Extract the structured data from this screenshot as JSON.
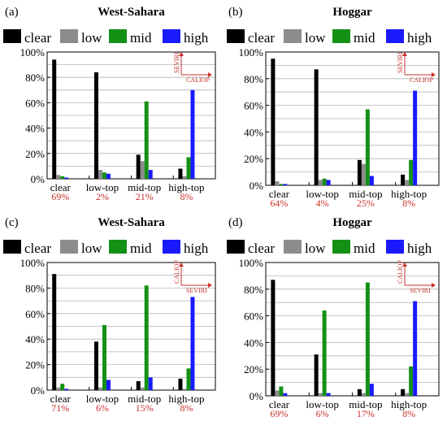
{
  "colors": {
    "clear": "#000000",
    "low": "#8c8c8c",
    "mid": "#149114",
    "high": "#1a1aff",
    "percent_text": "#c8322b",
    "grid": "#b5b5b5"
  },
  "legend": [
    "clear",
    "low",
    "mid",
    "high"
  ],
  "chart_data": [
    {
      "panel": "(a)",
      "title": "West-Sahara",
      "type": "bar",
      "categories": [
        "clear",
        "low-top",
        "mid-top",
        "high-top"
      ],
      "category_percents": [
        "69%",
        "2%",
        "21%",
        "8%"
      ],
      "yticks": [
        "0%",
        "20%",
        "40%",
        "60%",
        "80%",
        "100%"
      ],
      "ylim": [
        0,
        100
      ],
      "inset": {
        "x_label": "CALIOP",
        "y_label": "SEVIRI"
      },
      "series": [
        {
          "name": "clear",
          "values": [
            94,
            84,
            19,
            8
          ]
        },
        {
          "name": "low",
          "values": [
            3,
            7,
            14,
            2
          ]
        },
        {
          "name": "mid",
          "values": [
            2,
            5,
            61,
            17
          ]
        },
        {
          "name": "high",
          "values": [
            1,
            4,
            7,
            70
          ]
        }
      ]
    },
    {
      "panel": "(b)",
      "title": "Hoggar",
      "type": "bar",
      "categories": [
        "clear",
        "low-top",
        "mid-top",
        "high-top"
      ],
      "category_percents": [
        "64%",
        "4%",
        "25%",
        "8%"
      ],
      "yticks": [
        "0%",
        "20%",
        "40%",
        "60%",
        "80%",
        "100%"
      ],
      "ylim": [
        0,
        100
      ],
      "inset": {
        "x_label": "CALIOP",
        "y_label": "SEVIRI"
      },
      "series": [
        {
          "name": "clear",
          "values": [
            95,
            87,
            19,
            8
          ]
        },
        {
          "name": "low",
          "values": [
            3,
            4,
            16,
            4
          ]
        },
        {
          "name": "mid",
          "values": [
            1,
            5,
            57,
            19
          ]
        },
        {
          "name": "high",
          "values": [
            1,
            4,
            7,
            71
          ]
        }
      ]
    },
    {
      "panel": "(c)",
      "title": "West-Sahara",
      "type": "bar",
      "categories": [
        "clear",
        "low-top",
        "mid-top",
        "high-top"
      ],
      "category_percents": [
        "71%",
        "6%",
        "15%",
        "8%"
      ],
      "yticks": [
        "0%",
        "20%",
        "40%",
        "60%",
        "80%",
        "100%"
      ],
      "ylim": [
        0,
        100
      ],
      "inset": {
        "x_label": "SEVIRI",
        "y_label": "CALIOP"
      },
      "series": [
        {
          "name": "clear",
          "values": [
            91,
            38,
            7,
            9
          ]
        },
        {
          "name": "low",
          "values": [
            2,
            2,
            2,
            1
          ]
        },
        {
          "name": "mid",
          "values": [
            5,
            51,
            82,
            17
          ]
        },
        {
          "name": "high",
          "values": [
            1,
            8,
            10,
            73
          ]
        }
      ]
    },
    {
      "panel": "(d)",
      "title": "Hoggar",
      "type": "bar",
      "categories": [
        "clear",
        "low-top",
        "mid-top",
        "high-top"
      ],
      "category_percents": [
        "69%",
        "6%",
        "17%",
        "8%"
      ],
      "yticks": [
        "0%",
        "20%",
        "40%",
        "60%",
        "80%",
        "100%"
      ],
      "ylim": [
        0,
        100
      ],
      "inset": {
        "x_label": "SEVIRI",
        "y_label": "CALIOP"
      },
      "series": [
        {
          "name": "clear",
          "values": [
            87,
            31,
            5,
            5
          ]
        },
        {
          "name": "low",
          "values": [
            4,
            2,
            2,
            2
          ]
        },
        {
          "name": "mid",
          "values": [
            7,
            64,
            85,
            22
          ]
        },
        {
          "name": "high",
          "values": [
            2,
            2,
            9,
            71
          ]
        }
      ]
    }
  ]
}
